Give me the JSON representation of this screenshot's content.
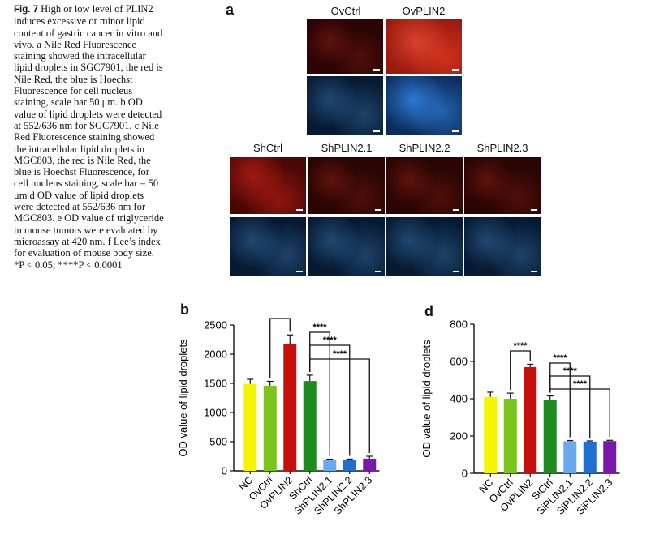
{
  "caption": {
    "fig_label": "Fig. 7",
    "text": "High or low level of PLIN2 induces excessive or minor lipid content of gastric cancer in vitro and vivo. a Nile Red Fluorescence staining showed the intracellular lipid droplets in SGC7901, the red is Nile Red, the blue is Hoechst Fluorescence for cell nucleus staining, scale bar 50 μm. b OD value of lipid droplets were detected at 552/636 nm for SGC7901. c Nile Red Fluorescence staining showed the intracellular lipid droplets in MGC803, the red is Nile Red, the blue is Hoechst Fluorescence, for cell nucleus staining, scale bar = 50 μm d OD value of lipid droplets were detected at 552/636 nm for MGC803. e OD value of triglyceride in mouse tumors were evaluated by microassay at 420 nm. f Lee’s index for evaluation of mouse body size. *P < 0.05; ****P < 0.0001"
  },
  "panel_a": {
    "letter": "a",
    "top_labels": [
      "OvCtrl",
      "OvPLIN2"
    ],
    "bottom_labels": [
      "ShCtrl",
      "ShPLIN2.1",
      "ShPLIN2.2",
      "ShPLIN2.3"
    ]
  },
  "chart_data": [
    {
      "panel": "b",
      "type": "bar",
      "ylabel": "OD value of lipid droplets",
      "ylim": [
        0,
        2500
      ],
      "yticks": [
        0,
        500,
        1000,
        1500,
        2000,
        2500
      ],
      "categories": [
        "NC",
        "OvCtrl",
        "OvPLIN2",
        "ShCtrl",
        "ShPLIN2.1",
        "ShPLIN2.2",
        "ShPLIN2.3"
      ],
      "values": [
        1490,
        1460,
        2170,
        1540,
        190,
        190,
        210
      ],
      "errors": [
        80,
        75,
        160,
        100,
        10,
        12,
        40
      ],
      "colors": [
        "#f5f500",
        "#79c51c",
        "#c6100e",
        "#1f8a1f",
        "#6aa8ef",
        "#1f6fd0",
        "#7b17a8"
      ],
      "significance": [
        {
          "from": "OvCtrl",
          "to": "OvPLIN2",
          "label": "****"
        },
        {
          "from": "ShCtrl",
          "to": "ShPLIN2.1",
          "label": "****"
        },
        {
          "from": "ShCtrl",
          "to": "ShPLIN2.2",
          "label": "****"
        },
        {
          "from": "ShCtrl",
          "to": "ShPLIN2.3",
          "label": "****"
        }
      ]
    },
    {
      "panel": "d",
      "type": "bar",
      "ylabel": "OD value of lipid droplets",
      "ylim": [
        0,
        800
      ],
      "yticks": [
        0,
        200,
        400,
        600,
        800
      ],
      "categories": [
        "NC",
        "OvCtrl",
        "OvPLIN2",
        "SiCtrl",
        "SiPLIN2.1",
        "SiPLIN2.2",
        "SiPLIN2.3"
      ],
      "values": [
        410,
        400,
        570,
        395,
        172,
        170,
        173
      ],
      "errors": [
        25,
        30,
        15,
        20,
        4,
        4,
        4
      ],
      "colors": [
        "#f5f500",
        "#79c51c",
        "#c6100e",
        "#1f8a1f",
        "#6aa8ef",
        "#1f6fd0",
        "#7b17a8"
      ],
      "significance": [
        {
          "from": "OvCtrl",
          "to": "OvPLIN2",
          "label": "****"
        },
        {
          "from": "SiCtrl",
          "to": "SiPLIN2.1",
          "label": "****"
        },
        {
          "from": "SiCtrl",
          "to": "SiPLIN2.2",
          "label": "****"
        },
        {
          "from": "SiCtrl",
          "to": "SiPLIN2.3",
          "label": "****"
        }
      ]
    }
  ]
}
